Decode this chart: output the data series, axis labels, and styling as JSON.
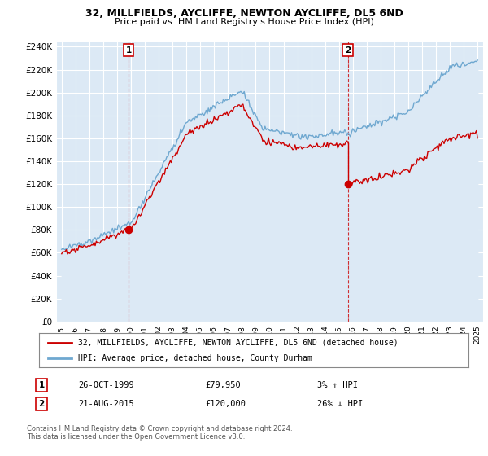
{
  "title1": "32, MILLFIELDS, AYCLIFFE, NEWTON AYCLIFFE, DL5 6ND",
  "title2": "Price paid vs. HM Land Registry's House Price Index (HPI)",
  "yticks": [
    0,
    20000,
    40000,
    60000,
    80000,
    100000,
    120000,
    140000,
    160000,
    180000,
    200000,
    220000,
    240000
  ],
  "ytick_labels": [
    "£0",
    "£20K",
    "£40K",
    "£60K",
    "£80K",
    "£100K",
    "£120K",
    "£140K",
    "£160K",
    "£180K",
    "£200K",
    "£220K",
    "£240K"
  ],
  "sale1_date": "26-OCT-1999",
  "sale1_price": 79950,
  "sale1_hpi": "3% ↑ HPI",
  "sale1_x": 1999.82,
  "sale2_date": "21-AUG-2015",
  "sale2_price": 120000,
  "sale2_hpi": "26% ↓ HPI",
  "sale2_x": 2015.64,
  "legend_label1": "32, MILLFIELDS, AYCLIFFE, NEWTON AYCLIFFE, DL5 6ND (detached house)",
  "legend_label2": "HPI: Average price, detached house, County Durham",
  "footer": "Contains HM Land Registry data © Crown copyright and database right 2024.\nThis data is licensed under the Open Government Licence v3.0.",
  "bg_color": "#ffffff",
  "plot_bg_color": "#dce9f5",
  "grid_color": "#ffffff",
  "hpi_color": "#6fa8d0",
  "sale_color": "#cc0000",
  "marker_color": "#cc0000",
  "fill_color": "#dce9f5"
}
